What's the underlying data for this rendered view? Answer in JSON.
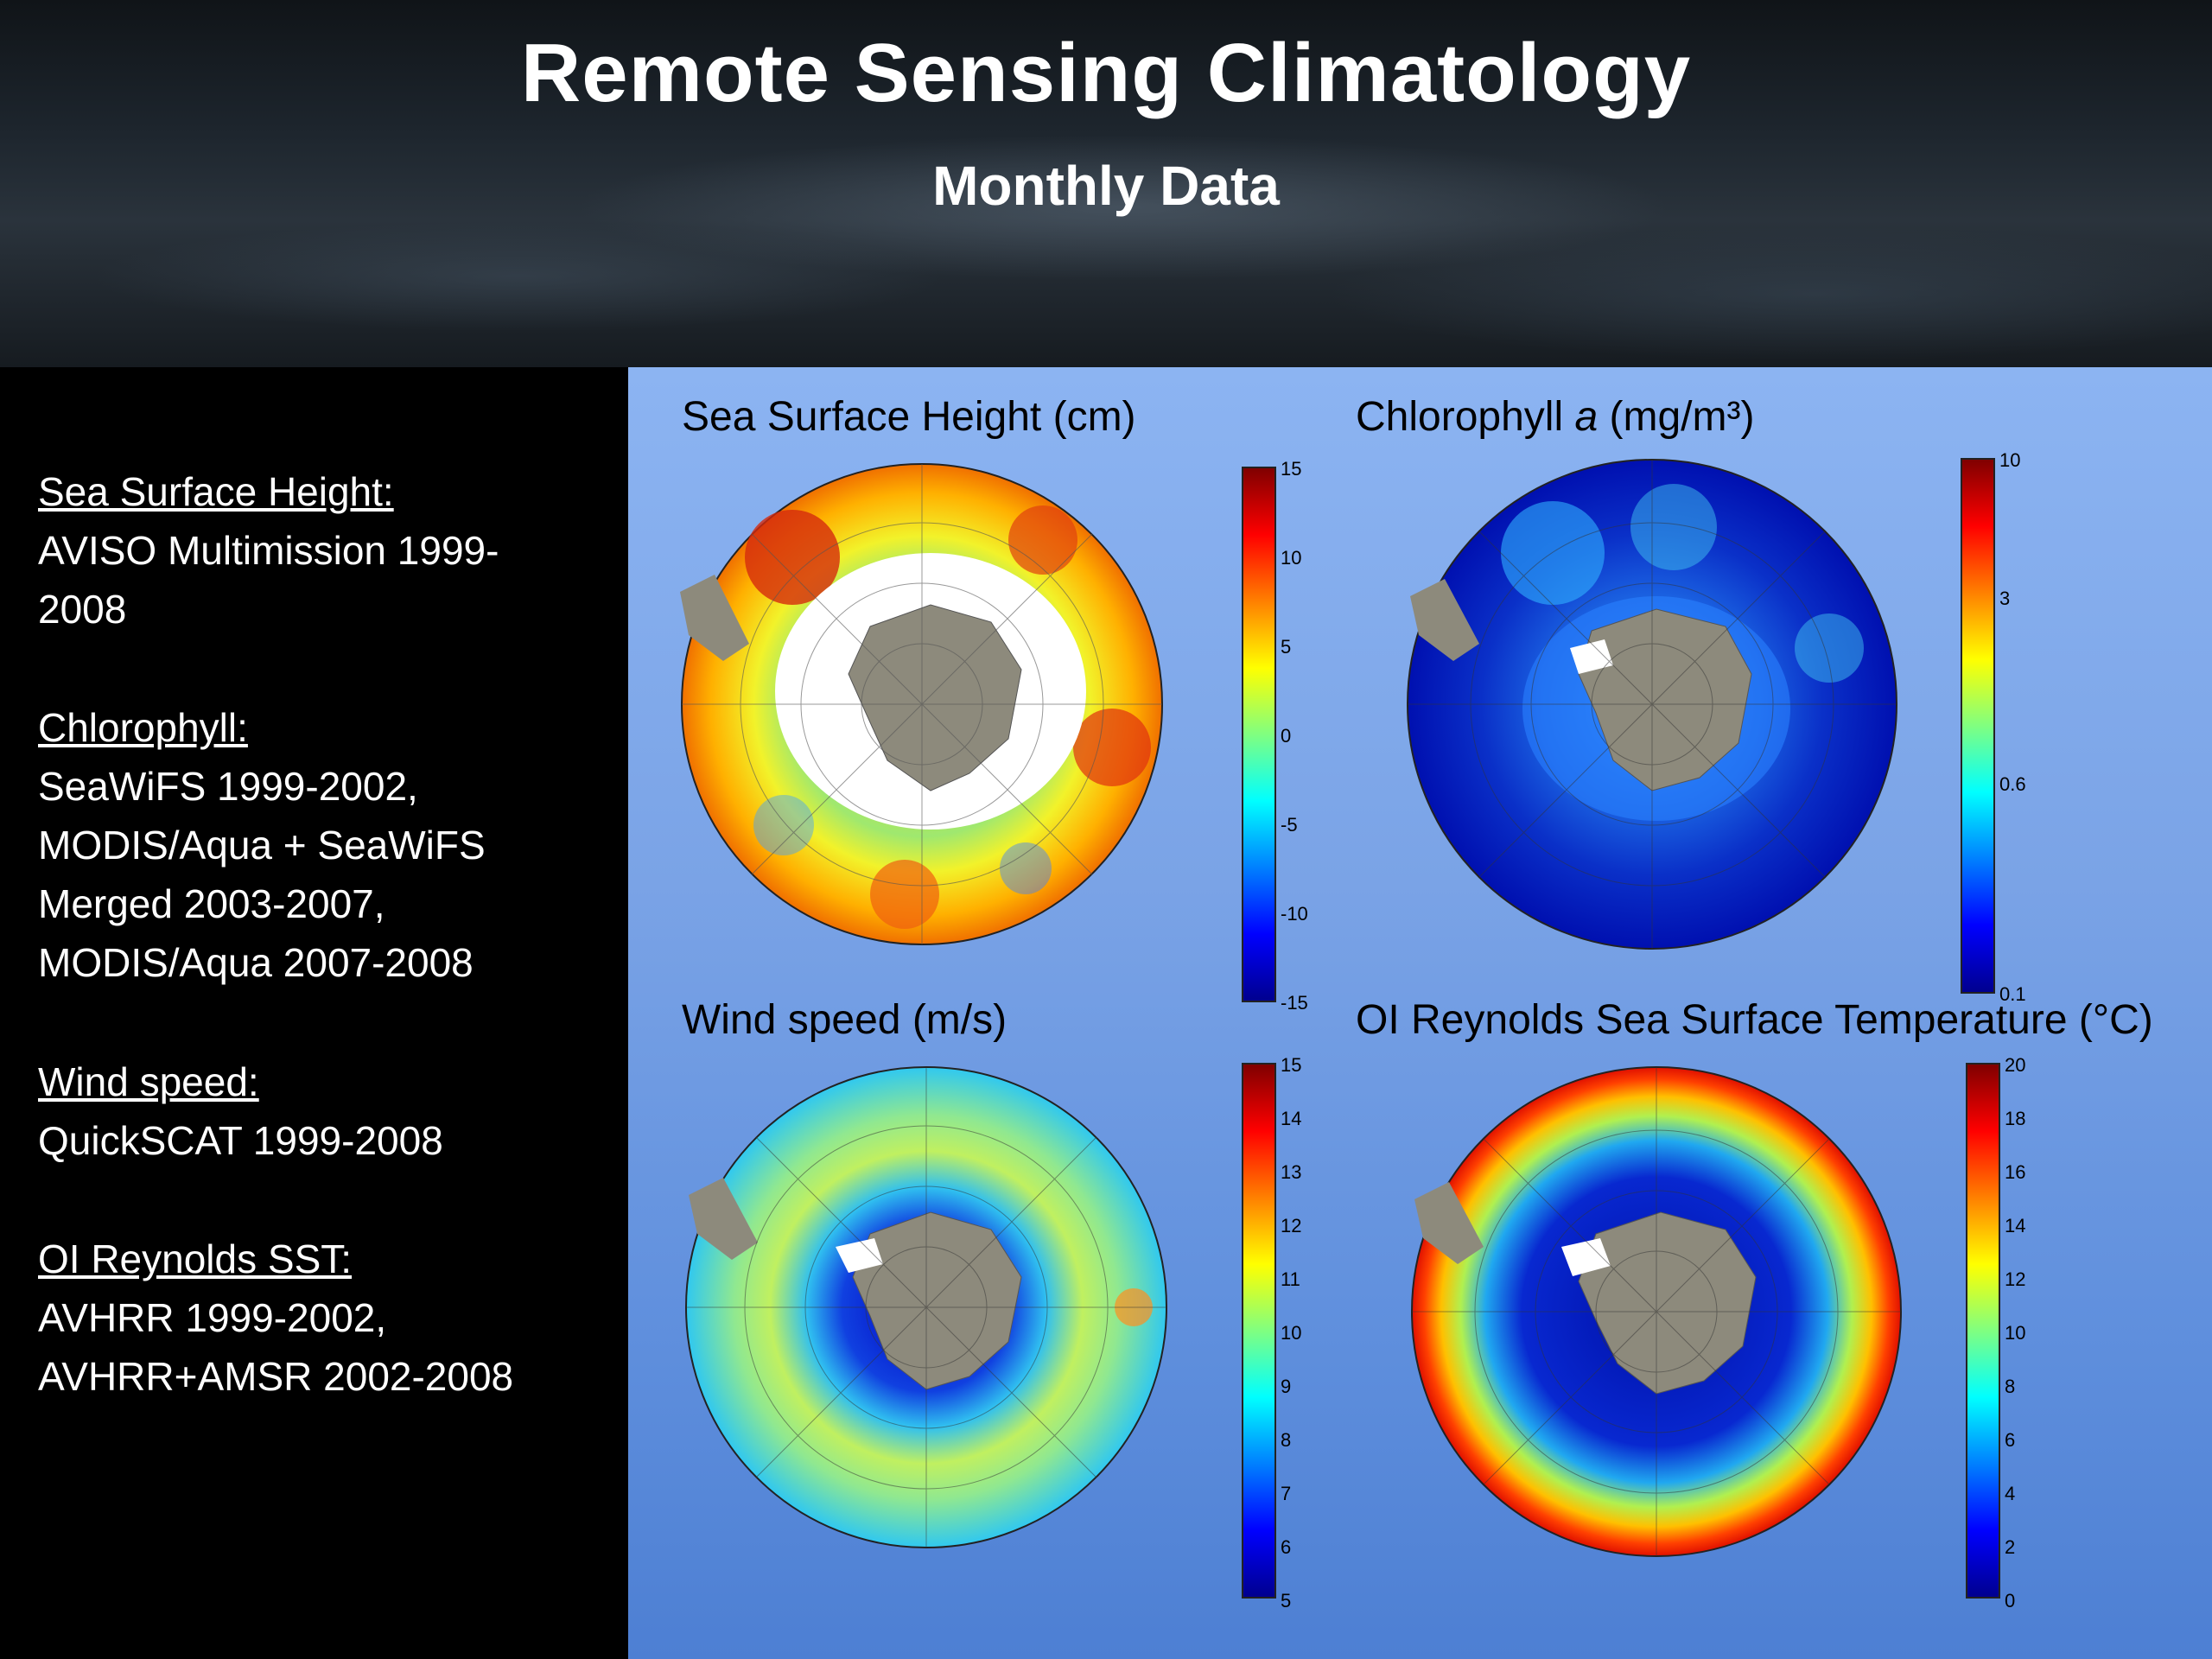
{
  "header": {
    "title": "Remote Sensing Climatology",
    "subtitle": "Monthly Data"
  },
  "sources": [
    {
      "heading": "Sea Surface Height:",
      "lines": [
        "AVISO Multimission 1999-",
        "2008"
      ]
    },
    {
      "heading": "Chlorophyll:",
      "lines": [
        "SeaWiFS 1999-2002,",
        "MODIS/Aqua + SeaWiFS",
        "Merged 2003-2007,",
        "MODIS/Aqua 2007-2008"
      ]
    },
    {
      "heading": "Wind speed:",
      "lines": [
        "QuickSCAT 1999-2008"
      ]
    },
    {
      "heading": "OI Reynolds SST:",
      "lines": [
        "AVHRR 1999-2002,",
        "AVHRR+AMSR 2002-2008"
      ]
    }
  ],
  "maps": [
    {
      "title": "Sea Surface Height (cm)",
      "ticks": [
        "15",
        "10",
        "5",
        "0",
        "-5",
        "-10",
        "-15"
      ]
    },
    {
      "title_pre": "Chlorophyll ",
      "title_italic": "a",
      "title_post": " (mg/m³)",
      "ticks": [
        "10",
        "3",
        "0.6",
        "0.1"
      ]
    },
    {
      "title": "Wind speed (m/s)",
      "ticks": [
        "15",
        "14",
        "13",
        "12",
        "11",
        "10",
        "9",
        "8",
        "7",
        "6",
        "5"
      ]
    },
    {
      "title": "OI Reynolds Sea Surface Temperature (°C)",
      "ticks": [
        "20",
        "18",
        "16",
        "14",
        "12",
        "10",
        "8",
        "6",
        "4",
        "2",
        "0"
      ]
    }
  ],
  "colors": {
    "land": "#8d8a7c",
    "ice": "#ffffff",
    "jet_low": "#00008f",
    "jet_high": "#800000"
  }
}
